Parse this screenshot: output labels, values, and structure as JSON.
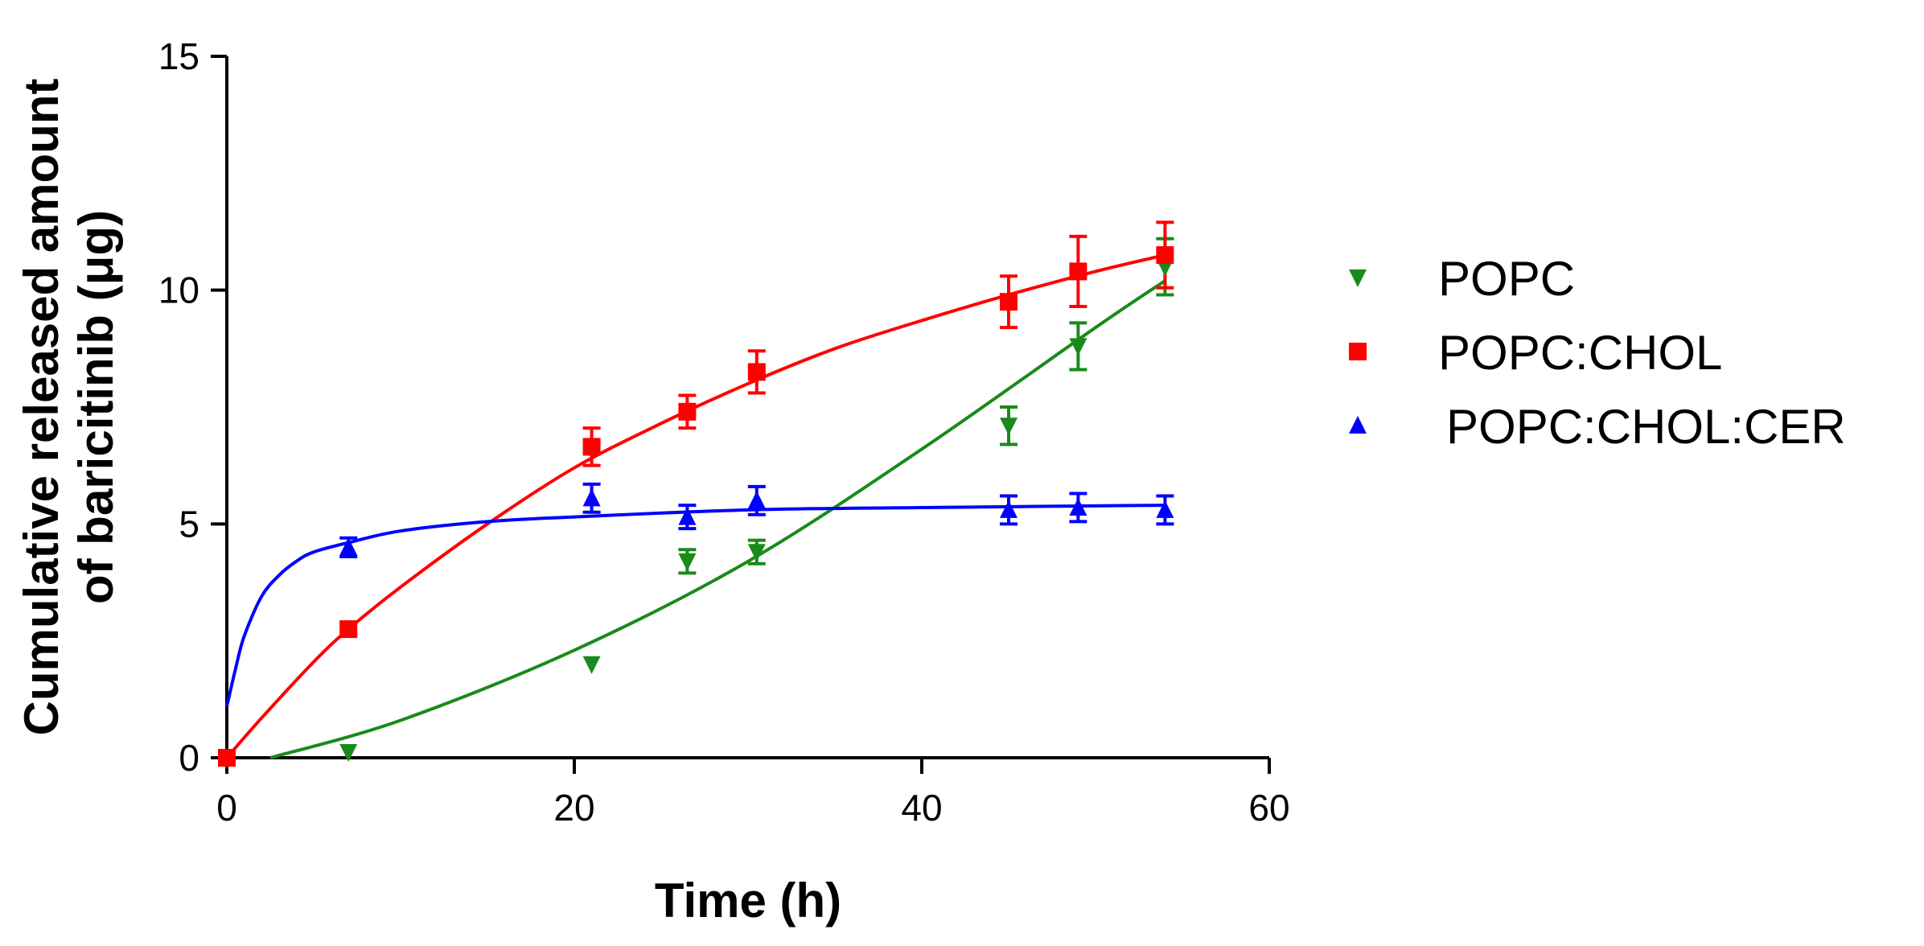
{
  "chart_data": {
    "type": "scatter",
    "title": "",
    "xlabel": "Time (h)",
    "ylabel_lines": [
      "Cumulative released amount",
      "of baricitinib (μg)"
    ],
    "xlim": [
      0,
      60
    ],
    "ylim": [
      0,
      15
    ],
    "xticks": [
      0,
      20,
      40,
      60
    ],
    "yticks": [
      0,
      5,
      10,
      15
    ],
    "grid": false,
    "legend_position": "right",
    "series": [
      {
        "name": "POPC",
        "color": "#1a8a1a",
        "marker": "triangle-down",
        "x": [
          0,
          7,
          21,
          26.5,
          30.5,
          45,
          49,
          54
        ],
        "y": [
          0,
          0.12,
          2.0,
          4.2,
          4.4,
          7.1,
          8.8,
          10.5
        ],
        "err": [
          0,
          0,
          0,
          0.25,
          0.25,
          0.4,
          0.5,
          0.6
        ],
        "fit_x": [
          2.5,
          10,
          20,
          30,
          40,
          50,
          54
        ],
        "fit_y": [
          0,
          0.8,
          2.3,
          4.2,
          6.6,
          9.2,
          10.2
        ]
      },
      {
        "name": "POPC:CHOL",
        "color": "#ff0000",
        "marker": "square",
        "x": [
          0,
          7,
          21,
          26.5,
          30.5,
          45,
          49,
          54
        ],
        "y": [
          0,
          2.75,
          6.65,
          7.4,
          8.25,
          9.75,
          10.4,
          10.75
        ],
        "err": [
          0,
          0.15,
          0.4,
          0.35,
          0.45,
          0.55,
          0.75,
          0.7
        ],
        "fit_x": [
          0,
          2,
          5,
          7,
          10,
          15,
          20,
          25,
          30,
          35,
          40,
          45,
          50,
          54
        ],
        "fit_y": [
          0,
          0.85,
          2.05,
          2.75,
          3.65,
          5.0,
          6.2,
          7.15,
          8.0,
          8.75,
          9.35,
          9.9,
          10.4,
          10.75
        ]
      },
      {
        "name": "POPC:CHOL:CER",
        "color": "#0000ff",
        "marker": "triangle-up",
        "x": [
          7,
          21,
          26.5,
          30.5,
          45,
          49,
          54
        ],
        "y": [
          4.5,
          5.55,
          5.15,
          5.5,
          5.3,
          5.35,
          5.3
        ],
        "err": [
          0.2,
          0.3,
          0.25,
          0.3,
          0.3,
          0.3,
          0.3
        ],
        "fit_x": [
          0,
          0.5,
          1,
          2,
          3,
          4,
          5,
          7,
          10,
          15,
          20,
          30,
          40,
          54
        ],
        "fit_y": [
          1.1,
          1.9,
          2.6,
          3.45,
          3.9,
          4.2,
          4.4,
          4.6,
          4.85,
          5.05,
          5.15,
          5.3,
          5.35,
          5.4
        ]
      }
    ]
  }
}
